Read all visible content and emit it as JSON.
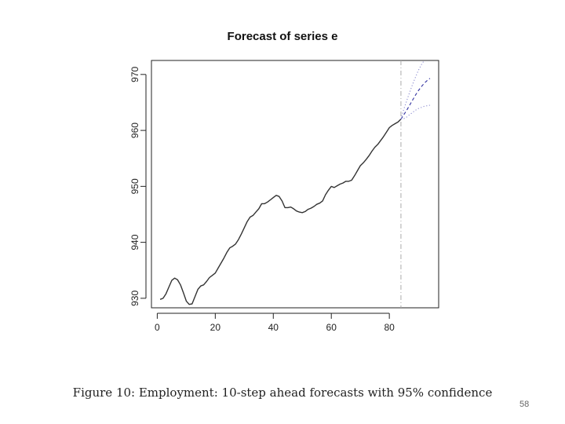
{
  "chart_data": {
    "type": "line",
    "title": "Forecast of series e",
    "xlabel": "",
    "ylabel": "",
    "xlim": [
      -2,
      97
    ],
    "ylim": [
      928.3,
      972.5
    ],
    "xticks": [
      0,
      20,
      40,
      60,
      80
    ],
    "yticks": [
      930,
      940,
      950,
      960,
      970
    ],
    "forecast_origin": 84,
    "grid": false,
    "series": [
      {
        "style": "solid",
        "color": "#333333",
        "x": [
          1,
          2,
          3,
          4,
          5,
          6,
          7,
          8,
          9,
          10,
          11,
          12,
          13,
          14,
          15,
          16,
          17,
          18,
          19,
          20,
          21,
          22,
          23,
          24,
          25,
          26,
          27,
          28,
          29,
          30,
          31,
          32,
          33,
          34,
          35,
          36,
          37,
          38,
          39,
          40,
          41,
          42,
          43,
          44,
          45,
          46,
          47,
          48,
          49,
          50,
          51,
          52,
          53,
          54,
          55,
          56,
          57,
          58,
          59,
          60,
          61,
          62,
          63,
          64,
          65,
          66,
          67,
          68,
          69,
          70,
          71,
          72,
          73,
          74,
          75,
          76,
          77,
          78,
          79,
          80,
          81,
          82,
          83,
          84
        ],
        "y": [
          929.8,
          930.0,
          930.8,
          932.0,
          933.2,
          933.6,
          933.3,
          932.4,
          931.0,
          929.5,
          928.9,
          929.0,
          930.3,
          931.6,
          932.2,
          932.4,
          933.0,
          933.7,
          934.1,
          934.5,
          935.4,
          936.3,
          937.2,
          938.2,
          939.0,
          939.3,
          939.7,
          940.5,
          941.5,
          942.6,
          943.7,
          944.5,
          944.8,
          945.4,
          946.0,
          946.9,
          946.9,
          947.2,
          947.6,
          948.0,
          948.4,
          948.2,
          947.4,
          946.2,
          946.2,
          946.3,
          946.0,
          945.6,
          945.4,
          945.3,
          945.5,
          945.9,
          946.1,
          946.4,
          946.8,
          947.0,
          947.4,
          948.5,
          949.3,
          950.0,
          949.8,
          950.1,
          950.4,
          950.6,
          950.9,
          950.9,
          951.1,
          951.9,
          952.8,
          953.7,
          954.2,
          954.8,
          955.5,
          956.3,
          957.0,
          957.5,
          958.2,
          958.9,
          959.7,
          960.5,
          960.9,
          961.2,
          961.5,
          962.0
        ]
      },
      {
        "style": "dashed",
        "color": "#3030a0",
        "x": [
          84,
          85,
          86,
          87,
          88,
          89,
          90,
          91,
          92,
          93,
          94
        ],
        "y": [
          962.0,
          962.8,
          963.6,
          964.5,
          965.4,
          966.3,
          967.1,
          967.8,
          968.4,
          968.9,
          969.3
        ]
      },
      {
        "style": "dotted",
        "color": "#8a8ad0",
        "x": [
          84,
          85,
          86,
          87,
          88,
          89,
          90,
          91,
          92,
          93,
          94
        ],
        "y": [
          962.0,
          963.8,
          965.3,
          966.8,
          968.2,
          969.5,
          970.7,
          971.7,
          972.5,
          973.2,
          973.8
        ]
      },
      {
        "style": "dotted",
        "color": "#8a8ad0",
        "x": [
          84,
          85,
          86,
          87,
          88,
          89,
          90,
          91,
          92,
          93,
          94
        ],
        "y": [
          962.0,
          962.1,
          962.4,
          962.8,
          963.2,
          963.6,
          963.9,
          964.1,
          964.3,
          964.4,
          964.5
        ]
      }
    ]
  },
  "caption": "Figure 10: Employment: 10-step ahead forecasts with 95% confidence",
  "page_number": "58"
}
